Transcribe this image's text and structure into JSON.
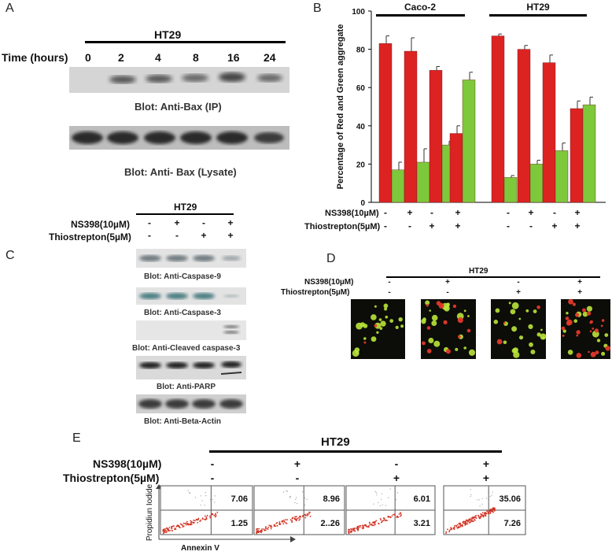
{
  "panels": {
    "A": "A",
    "B": "B",
    "C": "C",
    "D": "D",
    "E": "E"
  },
  "panelA": {
    "cell_line": "HT29",
    "time_label": "Time (hours)",
    "times": [
      "0",
      "2",
      "4",
      "8",
      "16",
      "24"
    ],
    "blot1_caption": "Blot: Anti-Bax (IP)",
    "blot2_caption": "Blot: Anti- Bax (Lysate)"
  },
  "panelC": {
    "cell_line": "HT29",
    "row1_label": "NS398(10µM)",
    "row2_label": "Thiostrepton(5µM)",
    "row1_signs": [
      "-",
      "+",
      "-",
      "+"
    ],
    "row2_signs": [
      "-",
      "-",
      "+",
      "+"
    ],
    "captions": [
      "Blot: Anti-Caspase-9",
      "Blot: Anti-Caspase-3",
      "Blot: Anti-Cleaved caspase-3",
      "Blot: Anti-PARP",
      "Blot: Anti-Beta-Actin"
    ]
  },
  "panelD": {
    "cell_line": "HT29",
    "row1_label": "NS398(10µM)",
    "row2_label": "Thiostrepton(5µM)",
    "row1_signs": [
      "-",
      "+",
      "-",
      "+"
    ],
    "row2_signs": [
      "-",
      "-",
      "+",
      "+"
    ]
  },
  "panelE": {
    "cell_line": "HT29",
    "row1_label": "NS398(10µM)",
    "row2_label": "Thiostrepton(5µM)",
    "row1_signs": [
      "-",
      "+",
      "-",
      "+"
    ],
    "row2_signs": [
      "-",
      "-",
      "+",
      "+"
    ],
    "ylabel": "Propidiun Iodide",
    "xlabel": "Annexin V",
    "plots": [
      {
        "upper_right": "7.06",
        "lower_right": "1.25"
      },
      {
        "upper_right": "8.96",
        "lower_right": "2..26"
      },
      {
        "upper_right": "6.01",
        "lower_right": "3.21"
      },
      {
        "upper_right": "35.06",
        "lower_right": "7.26"
      }
    ]
  },
  "chart_data": {
    "type": "bar",
    "title": "",
    "ylabel": "Percentage of Red and Green aggregate",
    "ylim": [
      0,
      100
    ],
    "yticks": [
      "0",
      "20",
      "40",
      "60",
      "80",
      "100"
    ],
    "groups": [
      "Caco-2",
      "HT29"
    ],
    "row1_label": "NS398(10µM)",
    "row2_label": "Thiostrepton(5µM)",
    "row1_signs": [
      "-",
      "+",
      "-",
      "+",
      "-",
      "+",
      "-",
      "+"
    ],
    "row2_signs": [
      "-",
      "-",
      "+",
      "+",
      "-",
      "-",
      "+",
      "+"
    ],
    "colors": {
      "red": "#dd2222",
      "green": "#7ec83c"
    },
    "series": [
      {
        "values": [
          83,
          79,
          69,
          36,
          87,
          80,
          73,
          49
        ],
        "errors": [
          4,
          7,
          2,
          4,
          1,
          2,
          4,
          4
        ]
      },
      {
        "values": [
          17,
          21,
          30,
          64,
          13,
          20,
          27,
          51
        ],
        "errors": [
          4,
          7,
          2,
          4,
          1,
          2,
          4,
          4
        ]
      }
    ]
  }
}
